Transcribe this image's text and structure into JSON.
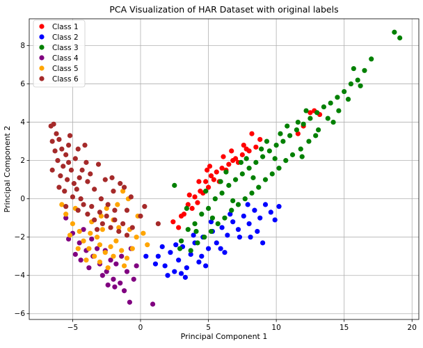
{
  "chart_data": {
    "type": "scatter",
    "title": "PCA Visualization of HAR Dataset with original labels",
    "xlabel": "Principal Component 1",
    "ylabel": "Principal Component 2",
    "xlim": [
      -8.2,
      20.5
    ],
    "ylim": [
      -6.3,
      9.4
    ],
    "xticks": [
      -5,
      0,
      5,
      10,
      15,
      20
    ],
    "yticks": [
      -6,
      -4,
      -2,
      0,
      2,
      4,
      6,
      8
    ],
    "grid": true,
    "legend_position": "top-left",
    "series": [
      {
        "name": "Class 1",
        "color": "#ff0000",
        "points": [
          [
            2.4,
            -1.2
          ],
          [
            3.0,
            -0.9
          ],
          [
            3.5,
            -0.3
          ],
          [
            4.0,
            0.1
          ],
          [
            4.4,
            0.4
          ],
          [
            4.8,
            0.9
          ],
          [
            5.2,
            1.2
          ],
          [
            5.6,
            1.4
          ],
          [
            6.0,
            1.6
          ],
          [
            6.5,
            1.8
          ],
          [
            7.0,
            2.1
          ],
          [
            7.5,
            2.3
          ],
          [
            8.0,
            2.5
          ],
          [
            8.5,
            2.7
          ],
          [
            8.2,
            3.4
          ],
          [
            7.8,
            2.6
          ],
          [
            6.3,
            1.5
          ],
          [
            5.0,
            0.6
          ],
          [
            4.2,
            -0.2
          ],
          [
            3.2,
            -0.8
          ],
          [
            3.8,
            -0.5
          ],
          [
            4.6,
            0.3
          ],
          [
            5.4,
            1.0
          ],
          [
            6.8,
            2.0
          ],
          [
            7.2,
            1.9
          ],
          [
            5.8,
            0.9
          ],
          [
            4.9,
            1.5
          ],
          [
            6.1,
            2.2
          ],
          [
            12.0,
            3.8
          ],
          [
            12.5,
            4.5
          ],
          [
            12.8,
            4.6
          ],
          [
            13.2,
            4.4
          ],
          [
            11.6,
            3.4
          ],
          [
            2.8,
            -1.5
          ],
          [
            3.6,
            0.2
          ],
          [
            4.3,
            0.9
          ],
          [
            5.1,
            1.7
          ],
          [
            6.7,
            2.5
          ],
          [
            7.6,
            2.8
          ],
          [
            8.8,
            3.1
          ]
        ]
      },
      {
        "name": "Class 2",
        "color": "#0000ff",
        "points": [
          [
            1.3,
            -3.0
          ],
          [
            1.8,
            -3.5
          ],
          [
            2.2,
            -2.8
          ],
          [
            2.5,
            -3.8
          ],
          [
            2.8,
            -3.2
          ],
          [
            3.1,
            -2.5
          ],
          [
            3.4,
            -3.6
          ],
          [
            3.7,
            -2.9
          ],
          [
            4.0,
            -2.3
          ],
          [
            4.3,
            -3.3
          ],
          [
            4.6,
            -2.0
          ],
          [
            5.0,
            -2.6
          ],
          [
            5.3,
            -1.7
          ],
          [
            5.6,
            -2.3
          ],
          [
            6.0,
            -1.5
          ],
          [
            6.4,
            -1.9
          ],
          [
            6.8,
            -1.2
          ],
          [
            7.2,
            -1.6
          ],
          [
            7.6,
            -0.9
          ],
          [
            8.0,
            -1.3
          ],
          [
            8.4,
            -0.6
          ],
          [
            8.8,
            -1.0
          ],
          [
            9.2,
            -0.3
          ],
          [
            9.6,
            -0.7
          ],
          [
            10.2,
            -0.4
          ],
          [
            9.9,
            -1.1
          ],
          [
            8.6,
            -1.7
          ],
          [
            7.3,
            -2.0
          ],
          [
            5.9,
            -2.6
          ],
          [
            4.5,
            -3.0
          ],
          [
            3.0,
            -3.9
          ],
          [
            2.0,
            -4.0
          ],
          [
            3.3,
            -4.1
          ],
          [
            9.0,
            -2.3
          ],
          [
            2.6,
            -2.4
          ],
          [
            3.9,
            -1.9
          ],
          [
            5.2,
            -1.2
          ],
          [
            6.6,
            -0.8
          ],
          [
            7.9,
            -0.3
          ],
          [
            6.2,
            -2.8
          ],
          [
            4.8,
            -3.5
          ],
          [
            1.6,
            -2.5
          ],
          [
            0.4,
            -3.0
          ],
          [
            1.1,
            -3.4
          ],
          [
            8.1,
            -2.0
          ]
        ]
      },
      {
        "name": "Class 3",
        "color": "#008000",
        "points": [
          [
            3.0,
            -2.2
          ],
          [
            3.5,
            -1.6
          ],
          [
            4.0,
            -1.3
          ],
          [
            4.5,
            -0.8
          ],
          [
            5.0,
            -0.5
          ],
          [
            5.5,
            0.0
          ],
          [
            6.0,
            0.3
          ],
          [
            6.5,
            0.7
          ],
          [
            7.0,
            1.0
          ],
          [
            7.5,
            1.3
          ],
          [
            8.0,
            1.6
          ],
          [
            8.5,
            1.9
          ],
          [
            9.0,
            2.2
          ],
          [
            9.5,
            2.5
          ],
          [
            10.0,
            2.8
          ],
          [
            10.5,
            3.0
          ],
          [
            11.0,
            3.3
          ],
          [
            11.5,
            3.6
          ],
          [
            12.0,
            3.9
          ],
          [
            12.5,
            4.2
          ],
          [
            13.0,
            4.5
          ],
          [
            13.5,
            4.8
          ],
          [
            14.0,
            5.0
          ],
          [
            14.5,
            5.3
          ],
          [
            15.0,
            5.6
          ],
          [
            15.5,
            6.0
          ],
          [
            16.0,
            6.2
          ],
          [
            16.5,
            6.7
          ],
          [
            17.0,
            7.3
          ],
          [
            18.7,
            8.7
          ],
          [
            19.1,
            8.4
          ],
          [
            15.7,
            6.8
          ],
          [
            14.6,
            4.6
          ],
          [
            13.8,
            4.2
          ],
          [
            13.1,
            3.6
          ],
          [
            12.4,
            3.0
          ],
          [
            11.8,
            2.6
          ],
          [
            11.2,
            2.3
          ],
          [
            10.7,
            2.0
          ],
          [
            10.2,
            1.6
          ],
          [
            9.7,
            1.3
          ],
          [
            9.2,
            1.0
          ],
          [
            8.7,
            0.6
          ],
          [
            8.2,
            0.3
          ],
          [
            7.7,
            0.0
          ],
          [
            7.2,
            -0.3
          ],
          [
            6.7,
            -0.6
          ],
          [
            6.2,
            -1.0
          ],
          [
            5.7,
            -1.3
          ],
          [
            5.2,
            -1.7
          ],
          [
            4.7,
            -2.0
          ],
          [
            4.2,
            -2.3
          ],
          [
            3.7,
            -2.7
          ],
          [
            3.4,
            -0.5
          ],
          [
            4.8,
            0.4
          ],
          [
            6.3,
            1.4
          ],
          [
            7.8,
            2.1
          ],
          [
            9.3,
            3.0
          ],
          [
            10.8,
            3.8
          ],
          [
            12.2,
            4.6
          ],
          [
            11.6,
            4.0
          ],
          [
            10.3,
            3.4
          ],
          [
            8.9,
            2.6
          ],
          [
            7.4,
            1.9
          ],
          [
            5.9,
            0.9
          ],
          [
            2.5,
            0.7
          ],
          [
            2.9,
            -2.6
          ],
          [
            16.2,
            5.9
          ],
          [
            15.3,
            5.2
          ],
          [
            14.2,
            4.0
          ],
          [
            12.9,
            3.3
          ],
          [
            11.9,
            2.2
          ],
          [
            9.9,
            2.1
          ],
          [
            8.3,
            1.1
          ],
          [
            6.8,
            -0.1
          ],
          [
            5.3,
            -1.0
          ],
          [
            4.1,
            -1.7
          ]
        ]
      },
      {
        "name": "Class 4",
        "color": "#800080",
        "points": [
          [
            -5.5,
            -1.0
          ],
          [
            -5.0,
            -1.8
          ],
          [
            -4.5,
            -2.3
          ],
          [
            -4.0,
            -2.7
          ],
          [
            -3.5,
            -3.0
          ],
          [
            -3.0,
            -3.4
          ],
          [
            -2.5,
            -3.8
          ],
          [
            -2.0,
            -4.2
          ],
          [
            -1.5,
            -4.4
          ],
          [
            -1.2,
            -4.8
          ],
          [
            -0.8,
            -5.4
          ],
          [
            -1.0,
            -3.8
          ],
          [
            -2.2,
            -3.2
          ],
          [
            -3.2,
            -2.6
          ],
          [
            -4.2,
            -1.6
          ],
          [
            -3.8,
            -3.6
          ],
          [
            -2.8,
            -4.0
          ],
          [
            -1.8,
            -3.4
          ],
          [
            -0.5,
            -4.2
          ],
          [
            0.9,
            -5.5
          ],
          [
            -4.8,
            -2.9
          ],
          [
            -3.6,
            -2.1
          ],
          [
            -2.6,
            -2.7
          ],
          [
            -1.4,
            -3.0
          ],
          [
            -0.7,
            -2.6
          ],
          [
            -5.3,
            -2.1
          ],
          [
            -4.4,
            -3.2
          ],
          [
            -1.9,
            -4.6
          ],
          [
            -0.3,
            -3.5
          ],
          [
            -2.4,
            -4.5
          ]
        ]
      },
      {
        "name": "Class 5",
        "color": "#ffa500",
        "points": [
          [
            -5.5,
            -0.8
          ],
          [
            -5.0,
            -1.3
          ],
          [
            -4.5,
            -1.7
          ],
          [
            -4.2,
            -2.2
          ],
          [
            -3.8,
            -2.6
          ],
          [
            -3.4,
            -3.0
          ],
          [
            -3.0,
            -3.3
          ],
          [
            -2.6,
            -2.8
          ],
          [
            -2.2,
            -2.5
          ],
          [
            -1.8,
            -2.2
          ],
          [
            -1.4,
            -2.7
          ],
          [
            -1.0,
            -3.1
          ],
          [
            -0.6,
            -2.6
          ],
          [
            -0.3,
            -2.0
          ],
          [
            0.2,
            -1.8
          ],
          [
            -0.2,
            -0.9
          ],
          [
            -1.3,
            0.4
          ],
          [
            -0.9,
            0.0
          ],
          [
            -4.8,
            -0.5
          ],
          [
            -3.6,
            -1.2
          ],
          [
            -2.8,
            -1.6
          ],
          [
            -2.0,
            -1.1
          ],
          [
            -1.6,
            -1.5
          ],
          [
            -3.2,
            -2.0
          ],
          [
            -4.0,
            -3.2
          ],
          [
            -2.4,
            -3.6
          ],
          [
            -1.2,
            -3.5
          ],
          [
            -5.2,
            -1.9
          ],
          [
            -4.6,
            -2.6
          ],
          [
            -3.0,
            -2.4
          ],
          [
            -2.0,
            -3.0
          ],
          [
            -0.8,
            -1.6
          ],
          [
            -5.8,
            -0.3
          ],
          [
            -2.5,
            -0.5
          ],
          [
            -1.7,
            -0.3
          ],
          [
            0.5,
            -2.4
          ],
          [
            -3.7,
            -1.8
          ],
          [
            -2.9,
            -0.9
          ]
        ]
      },
      {
        "name": "Class 6",
        "color": "#a52a2a",
        "points": [
          [
            -6.6,
            3.8
          ],
          [
            -6.4,
            3.9
          ],
          [
            -6.2,
            3.4
          ],
          [
            -6.5,
            3.0
          ],
          [
            -6.3,
            2.5
          ],
          [
            -6.0,
            3.1
          ],
          [
            -5.8,
            2.6
          ],
          [
            -6.1,
            2.0
          ],
          [
            -5.7,
            1.7
          ],
          [
            -5.5,
            2.3
          ],
          [
            -5.3,
            1.9
          ],
          [
            -5.9,
            1.2
          ],
          [
            -5.4,
            1.0
          ],
          [
            -5.1,
            1.5
          ],
          [
            -4.9,
            0.8
          ],
          [
            -5.6,
            0.4
          ],
          [
            -5.0,
            0.1
          ],
          [
            -4.7,
            0.5
          ],
          [
            -4.4,
            0.0
          ],
          [
            -4.6,
            -0.6
          ],
          [
            -4.2,
            -0.3
          ],
          [
            -3.9,
            -0.8
          ],
          [
            -3.6,
            -0.4
          ],
          [
            -3.4,
            -1.1
          ],
          [
            -3.0,
            -0.7
          ],
          [
            -2.8,
            -1.3
          ],
          [
            -2.5,
            -0.9
          ],
          [
            -2.2,
            -1.5
          ],
          [
            -1.9,
            -1.1
          ],
          [
            -1.6,
            -1.7
          ],
          [
            -1.3,
            -1.3
          ],
          [
            -1.0,
            -1.9
          ],
          [
            -0.6,
            -1.5
          ],
          [
            -5.3,
            2.8
          ],
          [
            -4.8,
            2.1
          ],
          [
            -4.3,
            1.5
          ],
          [
            -3.9,
            0.9
          ],
          [
            -3.4,
            0.5
          ],
          [
            -2.9,
            0.0
          ],
          [
            -2.4,
            -0.3
          ],
          [
            -1.9,
            -0.6
          ],
          [
            -4.0,
            1.9
          ],
          [
            -3.7,
            1.3
          ],
          [
            -4.5,
            1.1
          ],
          [
            -5.2,
            3.3
          ],
          [
            -4.6,
            2.6
          ],
          [
            -2.6,
            1.0
          ],
          [
            -2.0,
            0.4
          ],
          [
            -1.5,
            0.8
          ],
          [
            -1.0,
            -0.6
          ],
          [
            0.0,
            -0.9
          ],
          [
            0.3,
            -0.4
          ],
          [
            1.3,
            -1.3
          ],
          [
            -6.5,
            1.5
          ],
          [
            -6.0,
            0.6
          ],
          [
            -5.5,
            -0.4
          ],
          [
            -3.2,
            -1.6
          ],
          [
            -0.7,
            0.1
          ],
          [
            -4.1,
            2.8
          ],
          [
            -3.1,
            1.8
          ],
          [
            -2.1,
            1.1
          ],
          [
            -1.2,
            0.6
          ]
        ]
      }
    ]
  }
}
